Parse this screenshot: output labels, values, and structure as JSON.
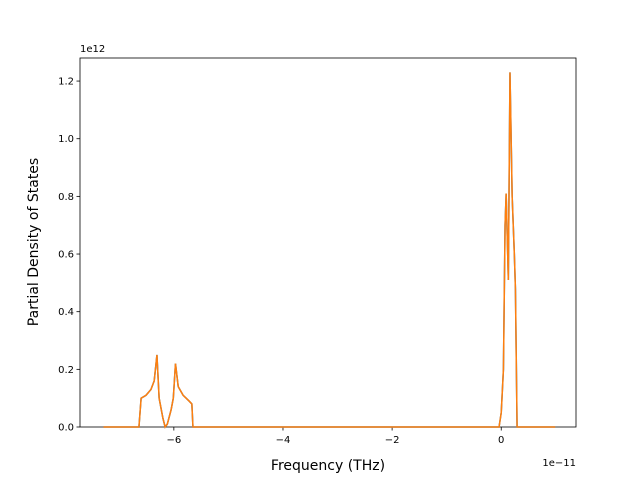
{
  "chart_data": {
    "type": "line",
    "x_label": "Frequency (THz)",
    "y_label": "Partial Density of States",
    "x_offset_label": "1e−11",
    "y_offset_label": "1e12",
    "x": [
      -7.29,
      -6.64,
      -6.6,
      -6.51,
      -6.42,
      -6.36,
      -6.31,
      -6.27,
      -6.2,
      -6.16,
      -6.12,
      -6.05,
      -6.01,
      -5.97,
      -5.92,
      -5.83,
      -5.72,
      -5.67,
      -5.65,
      -0.04,
      0,
      0.04,
      0.07,
      0.09,
      0.13,
      0.16,
      0.2,
      0.24,
      0.26,
      0.29,
      0.99
    ],
    "series": [
      {
        "color": "#1f77b4",
        "values": [
          0,
          0,
          0.1,
          0.11,
          0.13,
          0.16,
          0.25,
          0.1,
          0.03,
          0,
          0.01,
          0.06,
          0.1,
          0.22,
          0.14,
          0.11,
          0.09,
          0.08,
          0,
          0,
          0.05,
          0.2,
          0.7,
          0.81,
          0.51,
          1.23,
          0.8,
          0.6,
          0.48,
          0,
          0
        ]
      },
      {
        "color": "#ff7f0e",
        "values": [
          0,
          0,
          0.1,
          0.11,
          0.13,
          0.16,
          0.25,
          0.1,
          0.03,
          0,
          0.01,
          0.06,
          0.1,
          0.22,
          0.14,
          0.11,
          0.09,
          0.08,
          0,
          0,
          0.05,
          0.2,
          0.7,
          0.81,
          0.51,
          1.23,
          0.8,
          0.6,
          0.48,
          0,
          0
        ]
      }
    ],
    "xlim": [
      -7.72,
      1.37
    ],
    "xticks": [
      {
        "value": -6,
        "label": "−6"
      },
      {
        "value": -4,
        "label": "−4"
      },
      {
        "value": -2,
        "label": "−2"
      },
      0
    ],
    "ylim": [
      0,
      1.28
    ],
    "yticks": [
      {
        "value": 0,
        "label": "0.0"
      },
      0.2,
      0.4,
      0.6,
      0.8,
      {
        "value": 1,
        "label": "1.0"
      },
      1.2
    ]
  }
}
